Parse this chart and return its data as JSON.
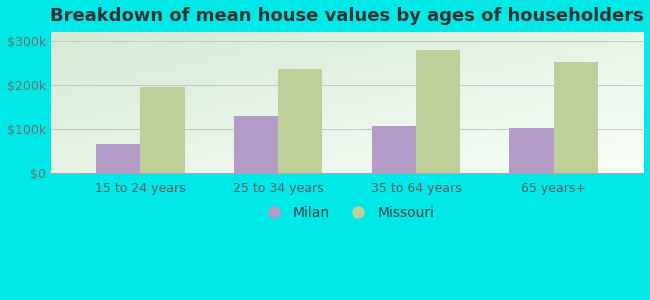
{
  "title": "Breakdown of mean house values by ages of householders",
  "categories": [
    "15 to 24 years",
    "25 to 34 years",
    "35 to 64 years",
    "65 years+"
  ],
  "milan_values": [
    65000,
    130000,
    107000,
    102000
  ],
  "missouri_values": [
    195000,
    235000,
    280000,
    252000
  ],
  "milan_color": "#b49cc8",
  "missouri_color": "#bfcf9a",
  "background_color": "#00e8e8",
  "gradient_top_left": "#d5ead5",
  "gradient_bottom_right": "#eaf5f0",
  "ylim": [
    0,
    320000
  ],
  "yticks": [
    0,
    100000,
    200000,
    300000
  ],
  "ytick_labels": [
    "$0",
    "$100k",
    "$200k",
    "$300k"
  ],
  "legend_labels": [
    "Milan",
    "Missouri"
  ],
  "title_fontsize": 13,
  "tick_fontsize": 9,
  "legend_fontsize": 10
}
